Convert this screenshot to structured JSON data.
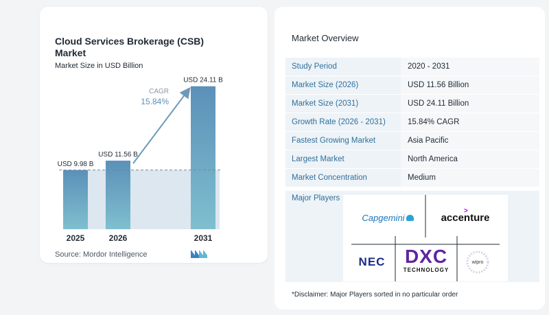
{
  "chart_data": {
    "type": "bar",
    "title": "Cloud Services Brokerage (CSB) Market",
    "subtitle": "Market Size in USD Billion",
    "categories": [
      "2025",
      "2026",
      "2031"
    ],
    "values": [
      9.98,
      11.56,
      24.11
    ],
    "data_labels": [
      "USD 9.98 B",
      "USD 11.56 B",
      "USD 24.11 B"
    ],
    "cagr_label": "CAGR",
    "cagr_value": "15.84%",
    "ylim": [
      0,
      25
    ],
    "colors": {
      "bar_top": "#5b90b8",
      "bar_bottom": "#7fbfcf",
      "shade": "#dce7ef",
      "dash": "#6c8a9c",
      "arrow": "#6d9ab8"
    }
  },
  "source": "Source:  Mordor Intelligence",
  "overview": {
    "title": "Market Overview",
    "rows": [
      {
        "key": "Study Period",
        "value": "2020 - 2031"
      },
      {
        "key": "Market Size (2026)",
        "value": "USD 11.56 Billion"
      },
      {
        "key": "Market Size (2031)",
        "value": "USD 24.11 Billion"
      },
      {
        "key": "Growth Rate (2026 - 2031)",
        "value": "15.84% CAGR"
      },
      {
        "key": "Fastest Growing Market",
        "value": "Asia Pacific"
      },
      {
        "key": "Largest Market",
        "value": "North America"
      },
      {
        "key": "Market Concentration",
        "value": "Medium"
      }
    ]
  },
  "players": {
    "title": "Major Players",
    "logos": [
      "Capgemini",
      "accenture",
      "NEC",
      "DXC",
      "TECHNOLOGY",
      "wipro"
    ]
  },
  "disclaimer": "*Disclaimer: Major Players sorted in no particular order"
}
